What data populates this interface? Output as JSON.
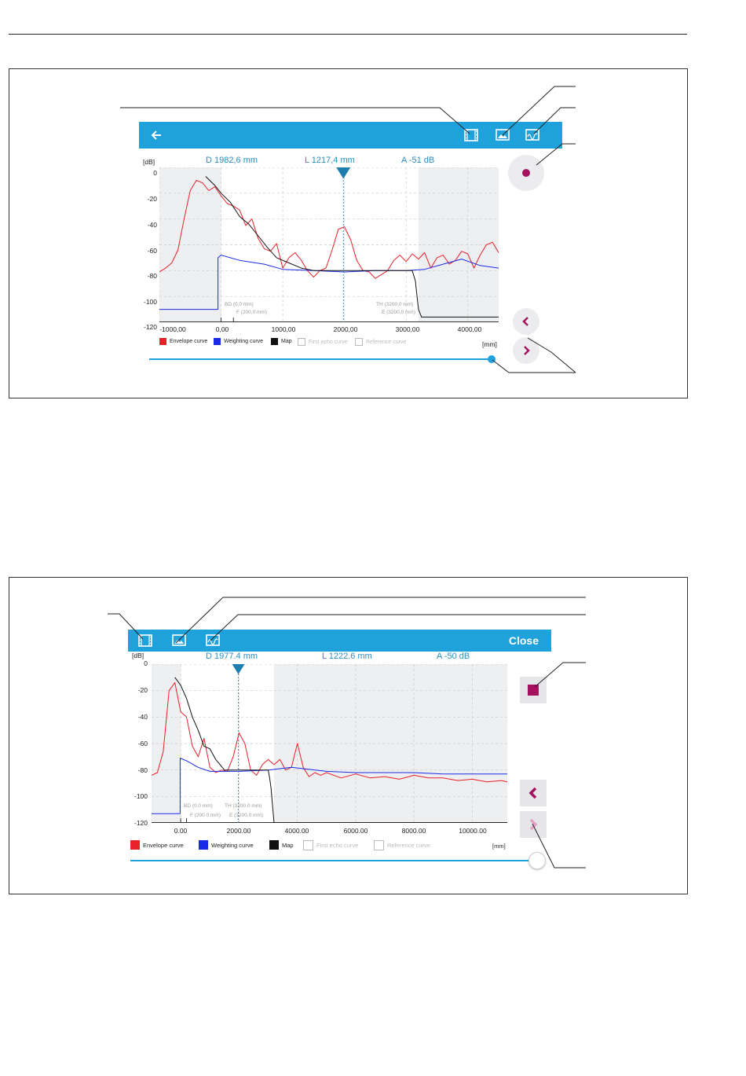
{
  "colors": {
    "accent": "#1fa1dc",
    "envelope": "#e8202a",
    "weighting": "#1a2be8",
    "map": "#111111",
    "record": "#a3115f",
    "shade": "#eeeff1"
  },
  "screen_a": {
    "icons": {
      "back": "arrow-left-icon",
      "film": "film-strip-icon",
      "image": "image-icon",
      "settings": "curve-settings-icon",
      "record": "record-dot-icon",
      "prev": "chevron-left-icon",
      "next": "chevron-right-icon"
    },
    "readouts": {
      "distance": "D 1982,6 mm",
      "level": "L 1217,4 mm",
      "amplitude": "A -51 dB"
    },
    "y_unit": "[dB]",
    "x_unit": "[mm]",
    "y_ticks": [
      "0",
      "-20",
      "-40",
      "-60",
      "-80",
      "-100",
      "-120"
    ],
    "x_ticks": [
      "-1000,00",
      "0,00",
      "1000,00",
      "2000,00",
      "3000,00",
      "4000,00"
    ],
    "markers": {
      "bd": "BD (0,0 mm)",
      "f": "F (200,0 mm)",
      "th": "TH (3200,0 mm)",
      "e": "E (3200,0 mm)"
    },
    "legend": [
      "Envelope curve",
      "Weighting curve",
      "Map",
      "First echo curve",
      "Reference curve"
    ]
  },
  "screen_b": {
    "close_label": "Close",
    "icons": {
      "film": "film-strip-icon",
      "image": "image-icon",
      "settings": "curve-settings-icon",
      "stop": "stop-square-icon",
      "prev": "chevron-left-icon",
      "next": "chevron-right-icon"
    },
    "readouts": {
      "distance": "D 1977.4 mm",
      "level": "L 1222.6 mm",
      "amplitude": "A -50 dB"
    },
    "y_unit": "[dB]",
    "x_unit": "[mm]",
    "y_ticks": [
      "0",
      "-20",
      "-40",
      "-60",
      "-80",
      "-100",
      "-120"
    ],
    "x_ticks": [
      "0.00",
      "2000.00",
      "4000.00",
      "6000.00",
      "8000.00",
      "10000.00"
    ],
    "markers": {
      "bd": "BD (0.0 mm)",
      "f": "F (200.0 mm)",
      "th": "TH (3200.0 mm)",
      "e": "E (3200.0 mm)"
    },
    "legend": [
      "Envelope curve",
      "Weighting curve",
      "Map",
      "First echo curve",
      "Reference curve"
    ]
  },
  "chart_data": [
    {
      "type": "line",
      "xlabel": "[mm]",
      "ylabel": "[dB]",
      "xlim": [
        -1000,
        4500
      ],
      "ylim": [
        -120,
        0
      ],
      "grid": true,
      "series": [
        {
          "name": "Envelope curve",
          "x": [
            -1000,
            -900,
            -800,
            -700,
            -600,
            -500,
            -400,
            -300,
            -200,
            -100,
            0,
            100,
            200,
            300,
            400,
            500,
            600,
            700,
            800,
            900,
            1000,
            1100,
            1200,
            1300,
            1400,
            1500,
            1600,
            1700,
            1800,
            1900,
            2000,
            2100,
            2200,
            2300,
            2400,
            2500,
            2600,
            2700,
            2800,
            2900,
            3000,
            3100,
            3200,
            3300,
            3400,
            3500,
            3600,
            3700,
            3800,
            3900,
            4000,
            4100,
            4200,
            4300,
            4400,
            4500
          ],
          "y": [
            -81,
            -78,
            -74,
            -64,
            -40,
            -18,
            -10,
            -12,
            -18,
            -15,
            -22,
            -28,
            -30,
            -33,
            -45,
            -40,
            -55,
            -63,
            -65,
            -59,
            -78,
            -70,
            -66,
            -72,
            -80,
            -85,
            -80,
            -78,
            -64,
            -48,
            -46,
            -56,
            -72,
            -80,
            -81,
            -86,
            -83,
            -80,
            -72,
            -68,
            -73,
            -67,
            -71,
            -66,
            -78,
            -70,
            -68,
            -75,
            -72,
            -65,
            -67,
            -78,
            -68,
            -60,
            -58,
            -66
          ]
        },
        {
          "name": "Weighting curve",
          "x": [
            -1000,
            -50,
            -50,
            0,
            300,
            700,
            1000,
            1500,
            2000,
            2500,
            3000,
            3300,
            3600,
            3900,
            4200,
            4500
          ],
          "y": [
            -110,
            -110,
            -70,
            -68,
            -72,
            -75,
            -79,
            -80,
            -81,
            -80,
            -80,
            -79,
            -75,
            -71,
            -76,
            -78
          ]
        },
        {
          "name": "Map",
          "x": [
            -250,
            -100,
            0,
            150,
            300,
            450,
            600,
            750,
            900,
            1100,
            1300,
            1500,
            1800,
            2100,
            2500,
            2900,
            3100,
            3150,
            3200,
            3250,
            3300,
            4500
          ],
          "y": [
            -7,
            -14,
            -20,
            -27,
            -38,
            -44,
            -53,
            -62,
            -70,
            -74,
            -78,
            -80,
            -80,
            -80,
            -80,
            -80,
            -80,
            -88,
            -110,
            -116,
            -116,
            -116
          ]
        }
      ]
    },
    {
      "type": "line",
      "xlabel": "[mm]",
      "ylabel": "[dB]",
      "xlim": [
        -1000,
        11200
      ],
      "ylim": [
        -120,
        0
      ],
      "grid": true,
      "series": [
        {
          "name": "Envelope curve",
          "x": [
            -1000,
            -800,
            -600,
            -400,
            -200,
            0,
            200,
            400,
            600,
            800,
            1000,
            1200,
            1400,
            1600,
            1800,
            2000,
            2200,
            2400,
            2600,
            2800,
            3000,
            3200,
            3400,
            3600,
            3800,
            4000,
            4200,
            4400,
            4600,
            4800,
            5000,
            5500,
            6000,
            6500,
            7000,
            7500,
            8000,
            8500,
            9000,
            9500,
            10000,
            10500,
            11000,
            11200
          ],
          "y": [
            -84,
            -82,
            -66,
            -20,
            -14,
            -36,
            -40,
            -62,
            -70,
            -56,
            -78,
            -82,
            -80,
            -81,
            -70,
            -52,
            -60,
            -80,
            -84,
            -76,
            -72,
            -76,
            -72,
            -80,
            -78,
            -60,
            -78,
            -85,
            -82,
            -84,
            -82,
            -86,
            -83,
            -86,
            -85,
            -87,
            -84,
            -86,
            -86,
            -88,
            -87,
            -89,
            -88,
            -89
          ]
        },
        {
          "name": "Weighting curve",
          "x": [
            -1000,
            -20,
            -20,
            200,
            600,
            1000,
            2000,
            3000,
            3800,
            4200,
            5000,
            6000,
            8000,
            9000,
            11200
          ],
          "y": [
            -113,
            -113,
            -71,
            -73,
            -78,
            -81,
            -81,
            -80,
            -78,
            -79,
            -81,
            -82,
            -82,
            -83,
            -83
          ]
        },
        {
          "name": "Map",
          "x": [
            -200,
            0,
            200,
            400,
            600,
            800,
            1000,
            1200,
            1500,
            2000,
            2500,
            3000,
            3050,
            3100,
            3200,
            11200
          ],
          "y": [
            -10,
            -16,
            -26,
            -40,
            -50,
            -62,
            -64,
            -72,
            -80,
            -80,
            -80,
            -80,
            -86,
            -94,
            -120,
            -120
          ]
        }
      ]
    }
  ]
}
